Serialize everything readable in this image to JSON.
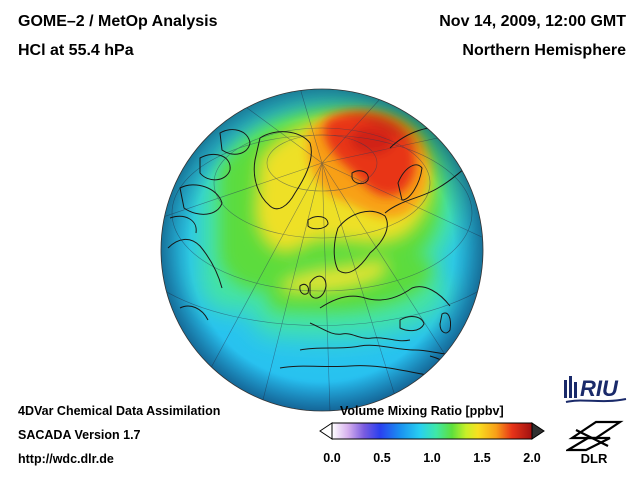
{
  "header": {
    "title_line1": "GOME–2 / MetOp Analysis",
    "title_line2": "HCl at 55.4 hPa",
    "date": "Nov 14, 2009, 12:00 GMT",
    "region": "Northern Hemisphere"
  },
  "footer": {
    "line1": "4DVar Chemical Data Assimilation",
    "line2": "SACADA Version 1.7",
    "line3": "http://wdc.dlr.de"
  },
  "colorbar": {
    "title": "Volume Mixing Ratio [ppbv]",
    "range": [
      0.0,
      2.0
    ],
    "ticks": [
      "0.0",
      "0.5",
      "1.0",
      "1.5",
      "2.0"
    ],
    "colors": [
      "#ffffff",
      "#d6b0ee",
      "#8a6ce0",
      "#3a3af0",
      "#1a90f0",
      "#28d0f0",
      "#3ee8a8",
      "#5ee03c",
      "#c8f028",
      "#f8e020",
      "#f8a818",
      "#f04018",
      "#d01818",
      "#a01010"
    ]
  },
  "logos": {
    "riu": "RIU",
    "dlr": "DLR"
  },
  "map": {
    "projection": "orthographic",
    "hemisphere": "Northern Hemisphere",
    "field_max_region": "northern Russia / Arctic",
    "colors": {
      "ocean_base": "#28c8f0",
      "edge": "#1e8ee8",
      "mid": "#40e4a0",
      "green": "#5adc38",
      "yellow": "#f0e428",
      "orange": "#f8a818",
      "red": "#e82818"
    }
  }
}
